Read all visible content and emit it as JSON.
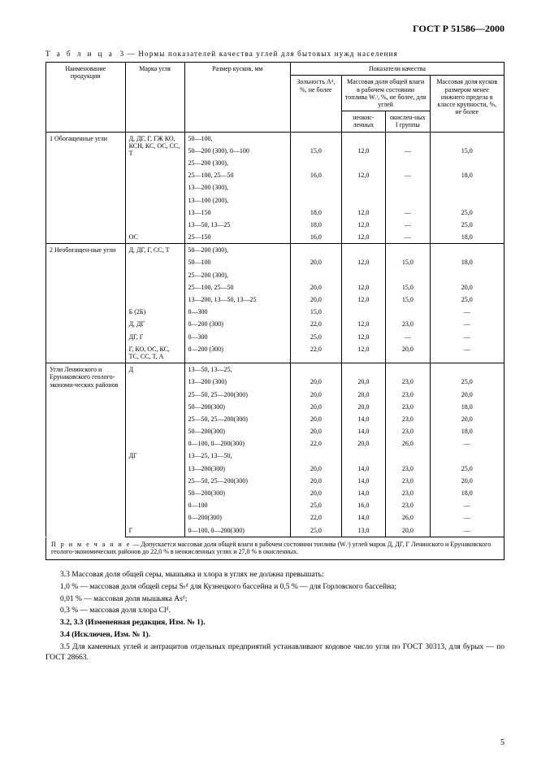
{
  "header": {
    "doc_code": "ГОСТ Р 51586—2000"
  },
  "table": {
    "title_label": "Т а б л и ц а",
    "title_num": "3",
    "title_rest": "— Нормы показателей качества углей для бытовых нужд населения",
    "head": {
      "name": "Наименование продукции",
      "mark": "Марка угля",
      "size": "Размер кусков, мм",
      "quality": "Показатели качества",
      "ash": "Зольность Aᵈ, %, не более",
      "moisture_total": "Массовая доля общей влаги в рабочем состоянии топлива Wᵣᵗ, %, не более, для углей",
      "moisture_neok": "неокис-ленных",
      "moisture_ok": "окислен-ных I группы",
      "fines": "Массовая доля кусков размером менее нижнего предела в классе крупности, %, не более"
    },
    "sections": [
      {
        "name": "1 Обогащенные угли",
        "main_mark": "Д, ДГ, Г, ГЖ КО, КСН, КС, ОС, СС, Т",
        "rows": [
          [
            "",
            "50—100,",
            "",
            "",
            "",
            ""
          ],
          [
            "",
            "50—200 (300), 0—100",
            "15,0",
            "12,0",
            "—",
            "15,0"
          ],
          [
            "",
            "25—200 (300),",
            "",
            "",
            "",
            ""
          ],
          [
            "",
            "25—100, 25—50",
            "16,0",
            "12,0",
            "—",
            "18,0"
          ],
          [
            "",
            "13—200 (300),",
            "",
            "",
            "",
            ""
          ],
          [
            "",
            "13—100 (200),",
            "",
            "",
            "",
            ""
          ],
          [
            "",
            "13—150",
            "18,0",
            "12,0",
            "—",
            "25,0"
          ],
          [
            "",
            "13—50, 13—25",
            "18,0",
            "12,0",
            "—",
            "25,0"
          ],
          [
            "ОС",
            "25—150",
            "16,0",
            "12,0",
            "—",
            "18,0"
          ]
        ]
      },
      {
        "name": "2 Необогащен-ные угли",
        "main_mark": "Д, ДГ, Г, СС, Т",
        "rows": [
          [
            "",
            "50—200 (300),",
            "",
            "",
            "",
            ""
          ],
          [
            "",
            "50—100",
            "20,0",
            "12,0",
            "15,0",
            "18,0"
          ],
          [
            "",
            "25—200 (300),",
            "",
            "",
            "",
            ""
          ],
          [
            "",
            "25—100, 25—50",
            "20,0",
            "12,0",
            "15,0",
            "20,0"
          ],
          [
            "",
            "13—200, 13—50, 13—25",
            "20,0",
            "12,0",
            "15,0",
            "25,0"
          ],
          [
            "Б (2Б)",
            "0—300",
            "15,0",
            "",
            "",
            "—"
          ],
          [
            "Д, ДГ",
            "0—200 (300)",
            "22,0",
            "12,0",
            "23,0",
            "—"
          ],
          [
            "ДГ, Г",
            "0—300",
            "25,0",
            "12,0",
            "—",
            "—"
          ],
          [
            "Г, КО, ОС, КС, ТС, СС, Т, А",
            "0—200 (300)",
            "22,0",
            "12,0",
            "20,0",
            "—"
          ]
        ]
      },
      {
        "name": "Угли Ленинского и Ерунаковского геолого-экономи-ческих районов",
        "main_mark": "Д",
        "rows": [
          [
            "",
            "13—50, 13—25,",
            "",
            "",
            "",
            ""
          ],
          [
            "",
            "13—200 (300)",
            "20,0",
            "20,0",
            "23,0",
            "25,0"
          ],
          [
            "",
            "25—50, 25—200(300)",
            "20,0",
            "20,0",
            "23,0",
            "20,0"
          ],
          [
            "",
            "50—200(300)",
            "20,0",
            "20,0",
            "23,0",
            "18,0"
          ],
          [
            "",
            "25—50, 25—200(300)",
            "20,0",
            "14,0",
            "23,0",
            "20,0"
          ],
          [
            "",
            "50—200(300)",
            "20,0",
            "14,0",
            "23,0",
            "18,0"
          ],
          [
            "",
            "0—100, 0—200(300)",
            "22,0",
            "20,0",
            "26,0",
            "—"
          ],
          [
            "ДГ",
            "13—25, 13—50,",
            "",
            "",
            "",
            ""
          ],
          [
            "",
            "13—200(300)",
            "20,0",
            "14,0",
            "23,0",
            "25,0"
          ],
          [
            "",
            "25—50, 25—200(300)",
            "20,0",
            "14,0",
            "23,0",
            "20,0"
          ],
          [
            "",
            "50—200(300)",
            "20,0",
            "14,0",
            "23,0",
            "18,0"
          ],
          [
            "",
            "0—100",
            "25,0",
            "16,0",
            "23,0",
            "—"
          ],
          [
            "",
            "0—200(300)",
            "22,0",
            "14,0",
            "26,0",
            "—"
          ],
          [
            "Г",
            "0—100, 0—200(300)",
            "25,0",
            "13,0",
            "20,0",
            "—"
          ]
        ]
      }
    ],
    "note_label": "П р и м е ч а н и е",
    "note_text": "— Допускается массовая доля общей влаги в рабочем состоянии топлива (Wᵣᵗ) углей марок Д, ДГ, Г Ленинского и Ерунаковского геолого-экономических районов до 22,0 % в неокисленных углях и 27,0 % в окисленных."
  },
  "body": {
    "p33": "3.3 Массовая доля общей серы, мышьяка и хлора в углях не должна превышать:",
    "p33a": "1,0 % — массовая доля общей серы Sₜᵈ для Кузнецкого бассейна и 0,5 % — для Горловского бассейна;",
    "p33b": "0,01 % — массовая доля мышьяка Asᵈ;",
    "p33c": "0,3 % — массовая доля хлора Clᵈ.",
    "p32_33": "3.2, 3.3 (Измененная редакция, Изм. № 1).",
    "p34": "3.4 (Исключен, Изм. № 1).",
    "p35": "3.5 Для каменных углей и антрацитов отдельных предприятий устанавливают кодовое число угля по ГОСТ 30313, для бурых — по ГОСТ 28663."
  },
  "page_number": "5"
}
